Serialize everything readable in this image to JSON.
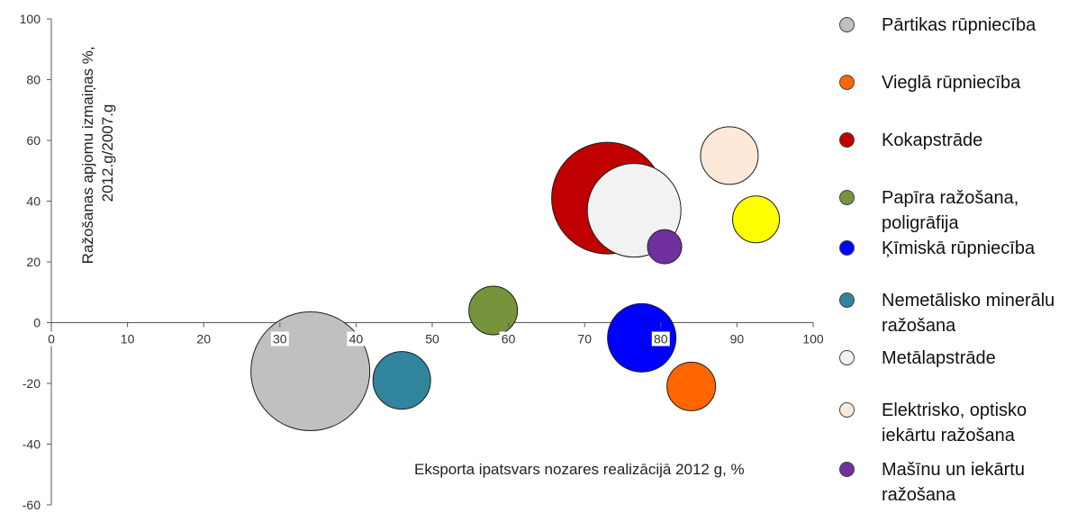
{
  "chart_data": {
    "type": "bubble",
    "xlabel": "Eksporta ipatsvars nozares realizācijā 2012 g, %",
    "ylabel": "Ražošanas apjomu izmaiņas %, 2012.g/2007.g",
    "xlim": [
      0,
      100
    ],
    "ylim": [
      -60,
      100
    ],
    "xticks": [
      0,
      10,
      20,
      30,
      40,
      50,
      60,
      70,
      80,
      90,
      100
    ],
    "yticks": [
      100,
      80,
      60,
      40,
      20,
      0,
      -20,
      -40,
      -60
    ],
    "grid": false,
    "legend_position": "right",
    "series": [
      {
        "name": "Pārtikas rūpniecība",
        "x": 34,
        "y": -16,
        "size": 66,
        "color": "#c0c0c0"
      },
      {
        "name": "Vieglā rūpniecība",
        "x": 84,
        "y": -21,
        "size": 27,
        "color": "#ff6600"
      },
      {
        "name": "Kokapstrāde",
        "x": 73,
        "y": 41,
        "size": 62,
        "color": "#c00000"
      },
      {
        "name": "Papīra ražošana, poligrāfija",
        "x": 58,
        "y": 4,
        "size": 27,
        "color": "#77933c"
      },
      {
        "name": "Ķīmiskā rūpniecība",
        "x": 77.5,
        "y": -5,
        "size": 38,
        "color": "#0000ff"
      },
      {
        "name": "Nemetālisko minerālu ražošana",
        "x": 46,
        "y": -19,
        "size": 32,
        "color": "#31859c"
      },
      {
        "name": "Metālapstrāde",
        "x": 76.5,
        "y": 37,
        "size": 52,
        "color": "#f2f2f2"
      },
      {
        "name": "Elektrisko, optisko iekārtu ražošana",
        "x": 89,
        "y": 55,
        "size": 32,
        "color": "#fde9d9"
      },
      {
        "name": "Mašīnu un iekārtu ražošana",
        "x": 80.5,
        "y": 25,
        "size": 19,
        "color": "#7030a0"
      },
      {
        "name": "",
        "x": 92.5,
        "y": 34,
        "size": 26,
        "color": "#ffff00"
      }
    ]
  }
}
